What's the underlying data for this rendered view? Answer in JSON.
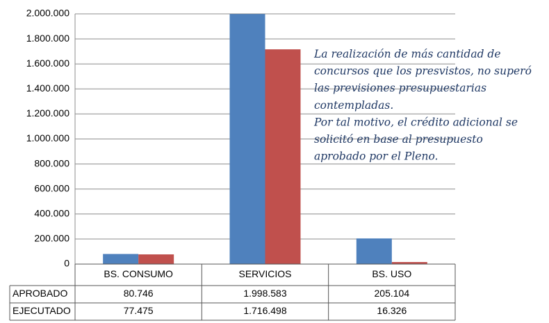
{
  "chart_data": {
    "type": "bar",
    "categories": [
      "BS. CONSUMO",
      "SERVICIOS",
      "BS. USO"
    ],
    "series": [
      {
        "name": "APROBADO",
        "color": "#4f81bd",
        "values": [
          80746,
          1998583,
          205104
        ],
        "value_labels": [
          "80.746",
          "1.998.583",
          "205.104"
        ]
      },
      {
        "name": "EJECUTADO",
        "color": "#c0504d",
        "values": [
          77475,
          1716498,
          16326
        ],
        "value_labels": [
          "77.475",
          "1.716.498",
          "16.326"
        ]
      }
    ],
    "ylim": [
      0,
      2000000
    ],
    "yticks": [
      0,
      {
        "value": 200000,
        "label": "200.000"
      },
      {
        "value": 400000,
        "label": "400.000"
      },
      {
        "value": 600000,
        "label": "600.000"
      },
      {
        "value": 800000,
        "label": "800.000"
      },
      {
        "value": 1000000,
        "label": "1.000.000"
      },
      {
        "value": 1200000,
        "label": "1.200.000"
      },
      {
        "value": 1400000,
        "label": "1.400.000"
      },
      {
        "value": 1600000,
        "label": "1.600.000"
      },
      {
        "value": 1800000,
        "label": "1.800.000"
      },
      {
        "value": 2000000,
        "label": "2.000.000"
      }
    ],
    "grid": true,
    "annotation": [
      "La realización de más cantidad de",
      "concursos que los presvistos, no superó",
      "las previsiones presupuestarias",
      "contempladas.",
      "Por tal motivo, el crédito adicional se",
      "solicitó en base al presupuesto",
      "aprobado por el Pleno."
    ]
  }
}
